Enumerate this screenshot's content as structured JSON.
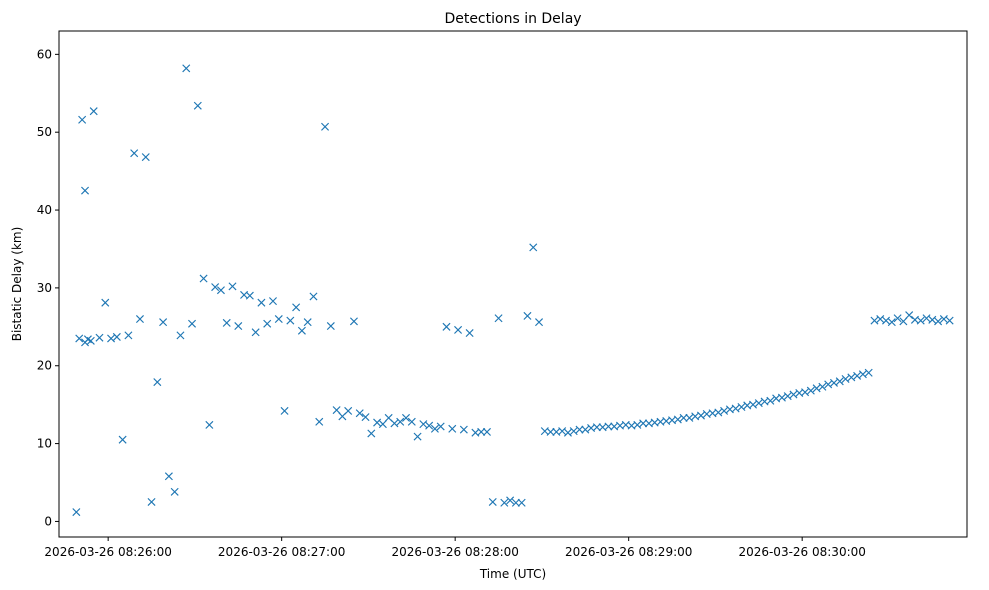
{
  "chart_data": {
    "type": "scatter",
    "title": "Detections in Delay",
    "xlabel": "Time (UTC)",
    "ylabel": "Bistatic Delay (km)",
    "x_is_time": true,
    "xlim": [
      "2026-03-26 08:25:43",
      "2026-03-26 08:30:57"
    ],
    "ylim": [
      -2,
      63
    ],
    "xticks": [
      "2026-03-26 08:26:00",
      "2026-03-26 08:27:00",
      "2026-03-26 08:28:00",
      "2026-03-26 08:29:00",
      "2026-03-26 08:30:00"
    ],
    "yticks": [
      0,
      10,
      20,
      30,
      40,
      50,
      60
    ],
    "grid": false,
    "marker": "x",
    "color": "#1f77b4",
    "series": [
      {
        "x": [
          "2026-03-26 08:25:49",
          "2026-03-26 08:25:50",
          "2026-03-26 08:25:51",
          "2026-03-26 08:25:52",
          "2026-03-26 08:25:52",
          "2026-03-26 08:25:53",
          "2026-03-26 08:25:54",
          "2026-03-26 08:25:55",
          "2026-03-26 08:25:57",
          "2026-03-26 08:25:59",
          "2026-03-26 08:26:01",
          "2026-03-26 08:26:03",
          "2026-03-26 08:26:05",
          "2026-03-26 08:26:07",
          "2026-03-26 08:26:09",
          "2026-03-26 08:26:11",
          "2026-03-26 08:26:13",
          "2026-03-26 08:26:15",
          "2026-03-26 08:26:17",
          "2026-03-26 08:26:19",
          "2026-03-26 08:26:21",
          "2026-03-26 08:26:23",
          "2026-03-26 08:26:25",
          "2026-03-26 08:26:27",
          "2026-03-26 08:26:29",
          "2026-03-26 08:26:31",
          "2026-03-26 08:26:33",
          "2026-03-26 08:26:35",
          "2026-03-26 08:26:37",
          "2026-03-26 08:26:39",
          "2026-03-26 08:26:41",
          "2026-03-26 08:26:43",
          "2026-03-26 08:26:45",
          "2026-03-26 08:26:47",
          "2026-03-26 08:26:49",
          "2026-03-26 08:26:51",
          "2026-03-26 08:26:53",
          "2026-03-26 08:26:55",
          "2026-03-26 08:26:57",
          "2026-03-26 08:26:59",
          "2026-03-26 08:27:01",
          "2026-03-26 08:27:03",
          "2026-03-26 08:27:05",
          "2026-03-26 08:27:07",
          "2026-03-26 08:27:09",
          "2026-03-26 08:27:11",
          "2026-03-26 08:27:13",
          "2026-03-26 08:27:15",
          "2026-03-26 08:27:17",
          "2026-03-26 08:27:19",
          "2026-03-26 08:27:21",
          "2026-03-26 08:27:23",
          "2026-03-26 08:27:25",
          "2026-03-26 08:27:27",
          "2026-03-26 08:27:29",
          "2026-03-26 08:27:31",
          "2026-03-26 08:27:33",
          "2026-03-26 08:27:35",
          "2026-03-26 08:27:37",
          "2026-03-26 08:27:39",
          "2026-03-26 08:27:41",
          "2026-03-26 08:27:43",
          "2026-03-26 08:27:45",
          "2026-03-26 08:27:47",
          "2026-03-26 08:27:49",
          "2026-03-26 08:27:51",
          "2026-03-26 08:27:53",
          "2026-03-26 08:27:55",
          "2026-03-26 08:27:57",
          "2026-03-26 08:27:59",
          "2026-03-26 08:28:01",
          "2026-03-26 08:28:03",
          "2026-03-26 08:28:05",
          "2026-03-26 08:28:07",
          "2026-03-26 08:28:09",
          "2026-03-26 08:28:11",
          "2026-03-26 08:28:13",
          "2026-03-26 08:28:15",
          "2026-03-26 08:28:17",
          "2026-03-26 08:28:19",
          "2026-03-26 08:28:21",
          "2026-03-26 08:28:23",
          "2026-03-26 08:28:25",
          "2026-03-26 08:28:27",
          "2026-03-26 08:28:29",
          "2026-03-26 08:28:31",
          "2026-03-26 08:28:33",
          "2026-03-26 08:28:35",
          "2026-03-26 08:28:37",
          "2026-03-26 08:28:39",
          "2026-03-26 08:28:41",
          "2026-03-26 08:28:43",
          "2026-03-26 08:28:45",
          "2026-03-26 08:28:47",
          "2026-03-26 08:28:49",
          "2026-03-26 08:28:51",
          "2026-03-26 08:28:53",
          "2026-03-26 08:28:55",
          "2026-03-26 08:28:57",
          "2026-03-26 08:28:59",
          "2026-03-26 08:29:01",
          "2026-03-26 08:29:03",
          "2026-03-26 08:29:05",
          "2026-03-26 08:29:07",
          "2026-03-26 08:29:09",
          "2026-03-26 08:29:11",
          "2026-03-26 08:29:13",
          "2026-03-26 08:29:15",
          "2026-03-26 08:29:17",
          "2026-03-26 08:29:19",
          "2026-03-26 08:29:21",
          "2026-03-26 08:29:23",
          "2026-03-26 08:29:25",
          "2026-03-26 08:29:27",
          "2026-03-26 08:29:29",
          "2026-03-26 08:29:31",
          "2026-03-26 08:29:33",
          "2026-03-26 08:29:35",
          "2026-03-26 08:29:37",
          "2026-03-26 08:29:39",
          "2026-03-26 08:29:41",
          "2026-03-26 08:29:43",
          "2026-03-26 08:29:45",
          "2026-03-26 08:29:47",
          "2026-03-26 08:29:49",
          "2026-03-26 08:29:51",
          "2026-03-26 08:29:53",
          "2026-03-26 08:29:55",
          "2026-03-26 08:29:57",
          "2026-03-26 08:29:59",
          "2026-03-26 08:30:01",
          "2026-03-26 08:30:03",
          "2026-03-26 08:30:05",
          "2026-03-26 08:30:07",
          "2026-03-26 08:30:09",
          "2026-03-26 08:30:11",
          "2026-03-26 08:30:13",
          "2026-03-26 08:30:15",
          "2026-03-26 08:30:17",
          "2026-03-26 08:30:19",
          "2026-03-26 08:30:21",
          "2026-03-26 08:30:23",
          "2026-03-26 08:30:25",
          "2026-03-26 08:30:27",
          "2026-03-26 08:30:29",
          "2026-03-26 08:30:31",
          "2026-03-26 08:30:33",
          "2026-03-26 08:30:35",
          "2026-03-26 08:30:37",
          "2026-03-26 08:30:39",
          "2026-03-26 08:30:41",
          "2026-03-26 08:30:43",
          "2026-03-26 08:30:45",
          "2026-03-26 08:30:47",
          "2026-03-26 08:30:49",
          "2026-03-26 08:30:51"
        ],
        "y": [
          1.2,
          23.5,
          51.6,
          23.0,
          42.5,
          23.4,
          23.2,
          52.7,
          23.6,
          28.1,
          23.5,
          23.7,
          10.5,
          23.9,
          47.3,
          26.0,
          46.8,
          2.5,
          17.9,
          25.6,
          5.8,
          3.8,
          23.9,
          58.2,
          25.4,
          53.4,
          31.2,
          12.4,
          30.1,
          29.7,
          25.5,
          30.2,
          25.1,
          29.1,
          29.0,
          24.3,
          28.1,
          25.4,
          28.3,
          26.0,
          14.2,
          25.8,
          27.5,
          24.5,
          25.6,
          28.9,
          12.8,
          50.7,
          25.1,
          14.3,
          13.5,
          14.2,
          25.7,
          13.9,
          13.4,
          11.3,
          12.7,
          12.5,
          13.3,
          12.6,
          12.8,
          13.3,
          12.8,
          10.9,
          12.5,
          12.3,
          11.9,
          12.2,
          25.0,
          11.9,
          24.6,
          11.8,
          24.2,
          11.4,
          11.5,
          11.5,
          2.5,
          26.1,
          2.4,
          2.7,
          2.4,
          2.4,
          26.4,
          35.2,
          25.6,
          11.6,
          11.5,
          11.5,
          11.6,
          11.4,
          11.6,
          11.8,
          11.8,
          12.0,
          12.1,
          12.1,
          12.2,
          12.2,
          12.3,
          12.4,
          12.3,
          12.4,
          12.6,
          12.6,
          12.7,
          12.8,
          12.9,
          13.0,
          13.1,
          13.3,
          13.3,
          13.5,
          13.6,
          13.8,
          13.9,
          14.0,
          14.2,
          14.4,
          14.5,
          14.7,
          14.9,
          15.0,
          15.2,
          15.4,
          15.5,
          15.8,
          15.9,
          16.1,
          16.3,
          16.5,
          16.6,
          16.8,
          17.1,
          17.3,
          17.6,
          17.8,
          18.0,
          18.3,
          18.5,
          18.7,
          18.9,
          19.1,
          25.8,
          26.0,
          25.8,
          25.6,
          26.1,
          25.7,
          26.5,
          25.9,
          25.8,
          26.1,
          25.9,
          25.7,
          26.0,
          25.8
        ],
        "extra_scatter_note": ""
      }
    ]
  }
}
